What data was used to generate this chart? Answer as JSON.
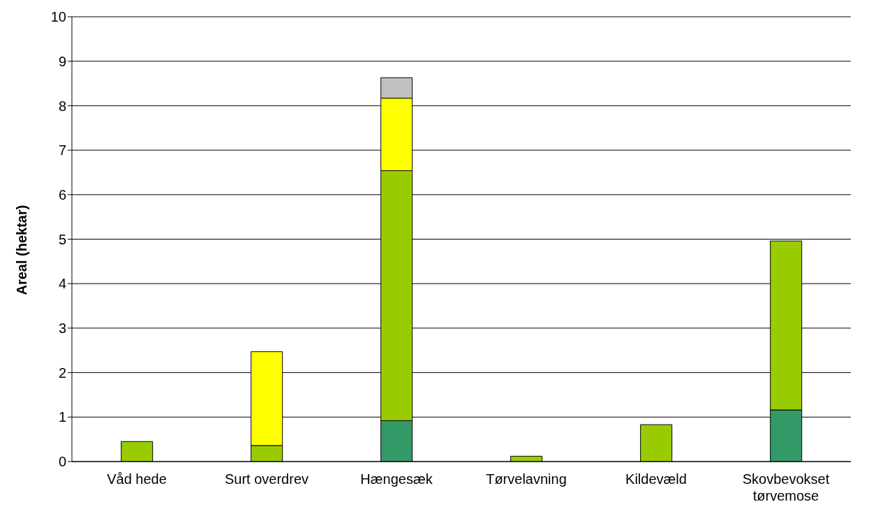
{
  "chart_data": {
    "type": "bar",
    "stacked": true,
    "ylabel": "Areal (hektar)",
    "categories": [
      "Våd hede",
      "Surt overdrev",
      "Hængesæk",
      "Tørvelavning",
      "Kildevæld",
      "Skovbevokset tørvemose"
    ],
    "series": [
      {
        "color": "#339966",
        "values": [
          0,
          0,
          0.92,
          0,
          0,
          1.16
        ]
      },
      {
        "color": "#99cc00",
        "values": [
          0.45,
          0.36,
          5.62,
          0.12,
          0.83,
          3.8
        ]
      },
      {
        "color": "#ffff00",
        "values": [
          0,
          2.11,
          1.63,
          0,
          0,
          0
        ]
      },
      {
        "color": "#c0c0c0",
        "values": [
          0,
          0,
          0.46,
          0,
          0,
          0
        ]
      }
    ],
    "ylim": [
      0,
      10
    ],
    "yticks": [
      0,
      1,
      2,
      3,
      4,
      5,
      6,
      7,
      8,
      9,
      10
    ],
    "grid": "y",
    "legend": false
  }
}
